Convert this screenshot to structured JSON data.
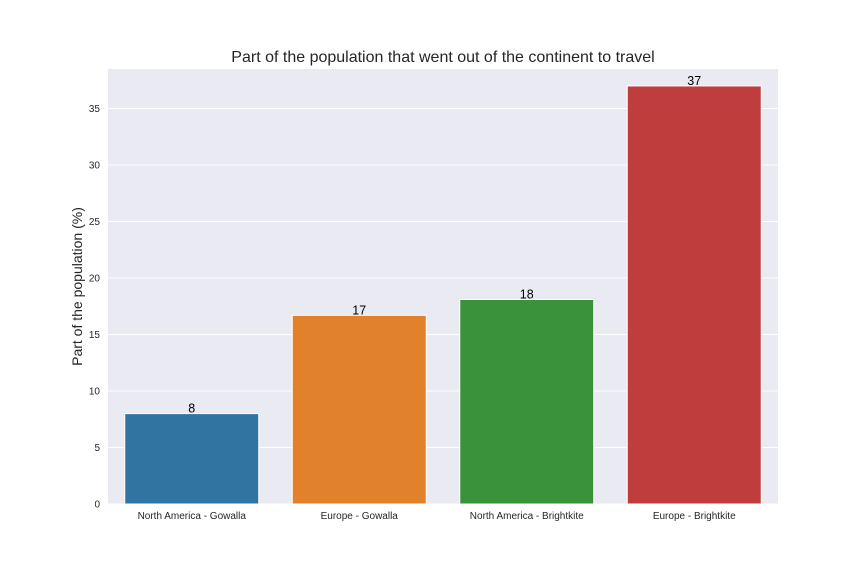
{
  "chart_data": {
    "type": "bar",
    "title": "Part of the population that went out of the continent to travel",
    "xlabel": "",
    "ylabel": "Part of the population (%)",
    "categories": [
      "North America - Gowalla",
      "Europe - Gowalla",
      "North America - Brightkite",
      "Europe - Brightkite"
    ],
    "values": [
      8,
      16.7,
      18.1,
      37
    ],
    "data_labels": [
      "8",
      "17",
      "18",
      "37"
    ],
    "colors": [
      "#3274a1",
      "#e1812c",
      "#3a923a",
      "#c03d3e"
    ],
    "ylim": [
      0,
      38.5
    ],
    "yticks": [
      0,
      5,
      10,
      15,
      20,
      25,
      30,
      35
    ],
    "grid": true,
    "legend": "none",
    "background_color": "#eaeaf2",
    "grid_color": "#ffffff"
  }
}
